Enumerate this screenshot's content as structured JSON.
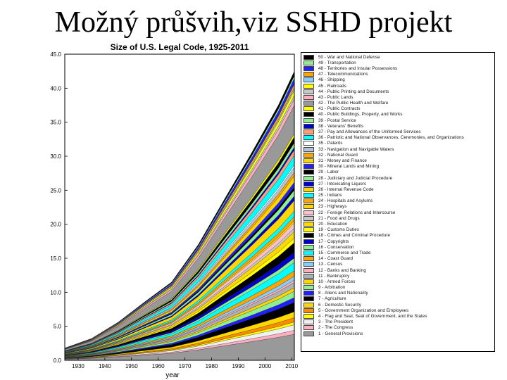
{
  "slide": {
    "title": "Možný průšvih,viz SSHD projekt"
  },
  "chart_data": {
    "type": "area",
    "title": "Size of U.S. Legal Code, 1925-2011",
    "xlabel": "year",
    "ylabel": "",
    "xlim": [
      1925,
      2011
    ],
    "ylim": [
      0,
      45
    ],
    "x_ticks": [
      "1930",
      "1940",
      "1950",
      "1960",
      "1970",
      "1980",
      "1990",
      "2000",
      "2010"
    ],
    "y_ticks": [
      "0.0",
      "5.0",
      "10.0",
      "15.0",
      "20.0",
      "25.0",
      "30.0",
      "35.0",
      "40.0",
      "45.0"
    ],
    "x": [
      1925,
      1935,
      1945,
      1955,
      1965,
      1975,
      1985,
      1995,
      2005,
      2011
    ],
    "total": [
      1.8,
      3.2,
      5.6,
      8.6,
      11.5,
      17.0,
      23.8,
      30.5,
      37.5,
      42.5
    ],
    "series": [
      {
        "name": "1 - General Provisions",
        "color": "#999999"
      },
      {
        "name": "2 - The Congress",
        "color": "#ffb0c0"
      },
      {
        "name": "3 - The President",
        "color": "#f0f0f0"
      },
      {
        "name": "4 - Flag and Seal, Seat of Government, and the States",
        "color": "#ffff00"
      },
      {
        "name": "5 - Government Organization and Employees",
        "color": "#ff8c00"
      },
      {
        "name": "6 - Domestic Security",
        "color": "#ffd700"
      },
      {
        "name": "7 - Agriculture",
        "color": "#000000"
      },
      {
        "name": "8 - Aliens and Nationality",
        "color": "#2020ff"
      },
      {
        "name": "9 - Arbitration",
        "color": "#90ee90"
      },
      {
        "name": "10 - Armed Forces",
        "color": "#ffd700"
      },
      {
        "name": "11 - Bankruptcy",
        "color": "#b0b0b0"
      },
      {
        "name": "12 - Banks and Banking",
        "color": "#ffb0c0"
      },
      {
        "name": "13 - Census",
        "color": "#87cefa"
      },
      {
        "name": "14 - Coast Guard",
        "color": "#ffa500"
      },
      {
        "name": "15 - Commerce and Trade",
        "color": "#00ffff"
      },
      {
        "name": "16 - Conservation",
        "color": "#90ee90"
      },
      {
        "name": "17 - Copyrights",
        "color": "#0000cd"
      },
      {
        "name": "18 - Crimes and Criminal Procedure",
        "color": "#000000"
      },
      {
        "name": "19 - Customs Duties",
        "color": "#ffff00"
      },
      {
        "name": "20 - Education",
        "color": "#ffd700"
      },
      {
        "name": "21 - Food and Drugs",
        "color": "#c8c8c8"
      },
      {
        "name": "22 - Foreign Relations and Intercourse",
        "color": "#ffc0cb"
      },
      {
        "name": "23 - Highways",
        "color": "#ffd700"
      },
      {
        "name": "24 - Hospitals and Asylums",
        "color": "#ffa500"
      },
      {
        "name": "25 - Indians",
        "color": "#00ffff"
      },
      {
        "name": "26 - Internal Revenue Code",
        "color": "#ffd700"
      },
      {
        "name": "27 - Intoxicating Liquors",
        "color": "#0000cd"
      },
      {
        "name": "28 - Judiciary and Judicial Procedure",
        "color": "#90ee90"
      },
      {
        "name": "29 - Labor",
        "color": "#000000"
      },
      {
        "name": "30 - Mineral Lands and Mining",
        "color": "#2020ff"
      },
      {
        "name": "31 - Money and Finance",
        "color": "#ffd700"
      },
      {
        "name": "32 - National Guard",
        "color": "#ffa500"
      },
      {
        "name": "33 - Navigation and Navigable Waters",
        "color": "#b0c4de"
      },
      {
        "name": "35 - Patents",
        "color": "#ffffff"
      },
      {
        "name": "36 - Patriotic and National Observances, Ceremonies, and Organizations",
        "color": "#00ffff"
      },
      {
        "name": "37 - Pay and Allowances of the Uniformed Services",
        "color": "#ffa07a"
      },
      {
        "name": "38 - Veterans' Benefits",
        "color": "#0000cd"
      },
      {
        "name": "39 - Postal Service",
        "color": "#90ee90"
      },
      {
        "name": "40 - Public Buildings, Property, and Works",
        "color": "#000000"
      },
      {
        "name": "41 - Public Contracts",
        "color": "#ffff00"
      },
      {
        "name": "42 - The Public Health and Welfare",
        "color": "#999999"
      },
      {
        "name": "43 - Public Lands",
        "color": "#ffb0c0"
      },
      {
        "name": "44 - Public Printing and Documents",
        "color": "#c8c8c8"
      },
      {
        "name": "45 - Railroads",
        "color": "#ffff00"
      },
      {
        "name": "46 - Shipping",
        "color": "#87cefa"
      },
      {
        "name": "47 - Telecommunications",
        "color": "#ffa500"
      },
      {
        "name": "48 - Territories and Insular Possessions",
        "color": "#2020ff"
      },
      {
        "name": "49 - Transportation",
        "color": "#90ee90"
      },
      {
        "name": "50 - War and National Defense",
        "color": "#000000"
      }
    ]
  }
}
